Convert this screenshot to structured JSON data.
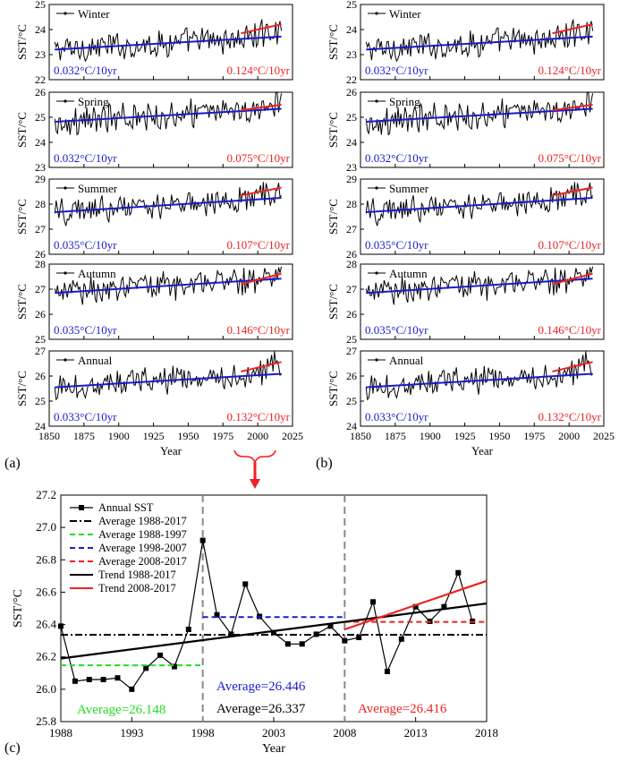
{
  "chart_data": [
    {
      "panel": "(a)",
      "type": "line",
      "xlabel": "Year",
      "ylabel": "SST/°C",
      "xlim": [
        1850,
        2025
      ],
      "xticks": [
        "1850",
        "1875",
        "1900",
        "1925",
        "1950",
        "1975",
        "2000",
        "2025"
      ],
      "subplots": [
        {
          "name": "Winter",
          "ylim": [
            22,
            25
          ],
          "yticks": [
            "22",
            "23",
            "24",
            "25"
          ],
          "long_trend": {
            "label": "0.032°C/10yr",
            "from": [
              1854,
              23.2
            ],
            "to": [
              2017,
              23.72
            ]
          },
          "recent_trend": {
            "label": "0.124°C/10yr",
            "from": [
              1988,
              23.85
            ],
            "to": [
              2017,
              24.21
            ]
          }
        },
        {
          "name": "Spring",
          "ylim": [
            23,
            26
          ],
          "yticks": [
            "23",
            "24",
            "25",
            "26"
          ],
          "long_trend": {
            "label": "0.032°C/10yr",
            "from": [
              1854,
              24.82
            ],
            "to": [
              2017,
              25.34
            ]
          },
          "recent_trend": {
            "label": "0.075°C/10yr",
            "from": [
              1988,
              25.28
            ],
            "to": [
              2017,
              25.5
            ]
          }
        },
        {
          "name": "Summer",
          "ylim": [
            26,
            29
          ],
          "yticks": [
            "26",
            "27",
            "28",
            "29"
          ],
          "long_trend": {
            "label": "0.035°C/10yr",
            "from": [
              1854,
              27.68
            ],
            "to": [
              2017,
              28.25
            ]
          },
          "recent_trend": {
            "label": "0.107°C/10yr",
            "from": [
              1988,
              28.35
            ],
            "to": [
              2017,
              28.66
            ]
          }
        },
        {
          "name": "Autumn",
          "ylim": [
            25,
            28
          ],
          "yticks": [
            "25",
            "26",
            "27",
            "28"
          ],
          "long_trend": {
            "label": "0.035°C/10yr",
            "from": [
              1854,
              26.85
            ],
            "to": [
              2017,
              27.42
            ]
          },
          "recent_trend": {
            "label": "0.146°C/10yr",
            "from": [
              1988,
              27.2
            ],
            "to": [
              2017,
              27.62
            ]
          }
        },
        {
          "name": "Annual",
          "ylim": [
            24,
            27
          ],
          "yticks": [
            "24",
            "25",
            "26",
            "27"
          ],
          "long_trend": {
            "label": "0.033°C/10yr",
            "from": [
              1854,
              25.55
            ],
            "to": [
              2017,
              26.09
            ]
          },
          "recent_trend": {
            "label": "0.132°C/10yr",
            "from": [
              1988,
              26.18
            ],
            "to": [
              2017,
              26.56
            ]
          }
        }
      ]
    },
    {
      "panel": "(b)",
      "type": "line",
      "xlabel": "Year",
      "ylabel": "SST/°C",
      "xlim": [
        1850,
        2025
      ],
      "xticks": [
        "1850",
        "1875",
        "1900",
        "1925",
        "1950",
        "1975",
        "2000",
        "2025"
      ],
      "subplots": [
        {
          "name": "Winter",
          "ylim": [
            22,
            25
          ],
          "yticks": [
            "22",
            "23",
            "24",
            "25"
          ],
          "long_trend": {
            "label": "0.032°C/10yr",
            "from": [
              1854,
              23.2
            ],
            "to": [
              2017,
              23.72
            ]
          },
          "recent_trend": {
            "label": "0.124°C/10yr",
            "from": [
              1988,
              23.85
            ],
            "to": [
              2017,
              24.21
            ]
          }
        },
        {
          "name": "Spring",
          "ylim": [
            23,
            26
          ],
          "yticks": [
            "23",
            "24",
            "25",
            "26"
          ],
          "long_trend": {
            "label": "0.032°C/10yr",
            "from": [
              1854,
              24.82
            ],
            "to": [
              2017,
              25.34
            ]
          },
          "recent_trend": {
            "label": "0.075°C/10yr",
            "from": [
              1988,
              25.28
            ],
            "to": [
              2017,
              25.5
            ]
          }
        },
        {
          "name": "Summer",
          "ylim": [
            26,
            29
          ],
          "yticks": [
            "26",
            "27",
            "28",
            "29"
          ],
          "long_trend": {
            "label": "0.035°C/10yr",
            "from": [
              1854,
              27.68
            ],
            "to": [
              2017,
              28.25
            ]
          },
          "recent_trend": {
            "label": "0.107°C/10yr",
            "from": [
              1988,
              28.35
            ],
            "to": [
              2017,
              28.66
            ]
          }
        },
        {
          "name": "Autumn",
          "ylim": [
            25,
            28
          ],
          "yticks": [
            "25",
            "26",
            "27",
            "28"
          ],
          "long_trend": {
            "label": "0.035°C/10yr",
            "from": [
              1854,
              26.85
            ],
            "to": [
              2017,
              27.42
            ]
          },
          "recent_trend": {
            "label": "0.146°C/10yr",
            "from": [
              1988,
              27.2
            ],
            "to": [
              2017,
              27.62
            ]
          }
        },
        {
          "name": "Annual",
          "ylim": [
            24,
            27
          ],
          "yticks": [
            "24",
            "25",
            "26",
            "27"
          ],
          "long_trend": {
            "label": "0.033°C/10yr",
            "from": [
              1854,
              25.55
            ],
            "to": [
              2017,
              26.09
            ]
          },
          "recent_trend": {
            "label": "0.132°C/10yr",
            "from": [
              1988,
              26.18
            ],
            "to": [
              2017,
              26.56
            ]
          }
        }
      ]
    },
    {
      "panel": "(c)",
      "type": "line",
      "xlabel": "Year",
      "ylabel": "SST/°C",
      "xlim": [
        1988,
        2018
      ],
      "ylim": [
        25.8,
        27.2
      ],
      "xticks": [
        "1988",
        "1993",
        "1998",
        "2003",
        "2008",
        "2013",
        "2018"
      ],
      "yticks": [
        "25.8",
        "26.0",
        "26.2",
        "26.4",
        "26.6",
        "26.8",
        "27.0",
        "27.2"
      ],
      "legend_position": "top-left",
      "x": [
        1988,
        1989,
        1990,
        1991,
        1992,
        1993,
        1994,
        1995,
        1996,
        1997,
        1998,
        1999,
        2000,
        2001,
        2002,
        2003,
        2004,
        2005,
        2006,
        2007,
        2008,
        2009,
        2010,
        2011,
        2012,
        2013,
        2014,
        2015,
        2016,
        2017
      ],
      "series": [
        {
          "name": "Annual SST",
          "style": "line-square",
          "color": "#000000",
          "values": [
            26.39,
            26.05,
            26.06,
            26.06,
            26.07,
            26.0,
            26.13,
            26.21,
            26.14,
            26.37,
            26.92,
            26.46,
            26.34,
            26.65,
            26.45,
            26.35,
            26.28,
            26.28,
            26.34,
            26.39,
            26.3,
            26.32,
            26.54,
            26.11,
            26.31,
            26.51,
            26.42,
            26.51,
            26.72,
            26.42
          ]
        },
        {
          "name": "Average 1988-2017",
          "style": "dash-dot",
          "color": "#000000",
          "x_range": [
            1988,
            2018
          ],
          "value": 26.337
        },
        {
          "name": "Average 1988-1997",
          "style": "dashed",
          "color": "#22dd22",
          "x_range": [
            1988,
            1998
          ],
          "value": 26.148
        },
        {
          "name": "Average 1998-2007",
          "style": "dashed",
          "color": "#1a1acc",
          "x_range": [
            1998,
            2008
          ],
          "value": 26.446
        },
        {
          "name": "Average 2008-2017",
          "style": "dashed",
          "color": "#ee2222",
          "x_range": [
            2008,
            2018
          ],
          "value": 26.416
        },
        {
          "name": "Trend 1988-2017",
          "style": "solid",
          "color": "#000000",
          "from": [
            1988,
            26.19
          ],
          "to": [
            2018,
            26.53
          ]
        },
        {
          "name": "Trend 2008-2017",
          "style": "solid",
          "color": "#ee2222",
          "from": [
            2008,
            26.37
          ],
          "to": [
            2018,
            26.67
          ]
        }
      ],
      "vlines": [
        1998,
        2008
      ],
      "annotations": [
        {
          "text": "Average=26.148",
          "color": "#22dd22"
        },
        {
          "text": "Average=26.446",
          "color": "#1a1acc"
        },
        {
          "text": "Average=26.337",
          "color": "#000000"
        },
        {
          "text": "Average=26.416",
          "color": "#ee2222"
        }
      ]
    }
  ],
  "colors": {
    "long_trend": "#1a1acc",
    "recent_trend": "#ee2222",
    "arrow": "#ee2222"
  }
}
